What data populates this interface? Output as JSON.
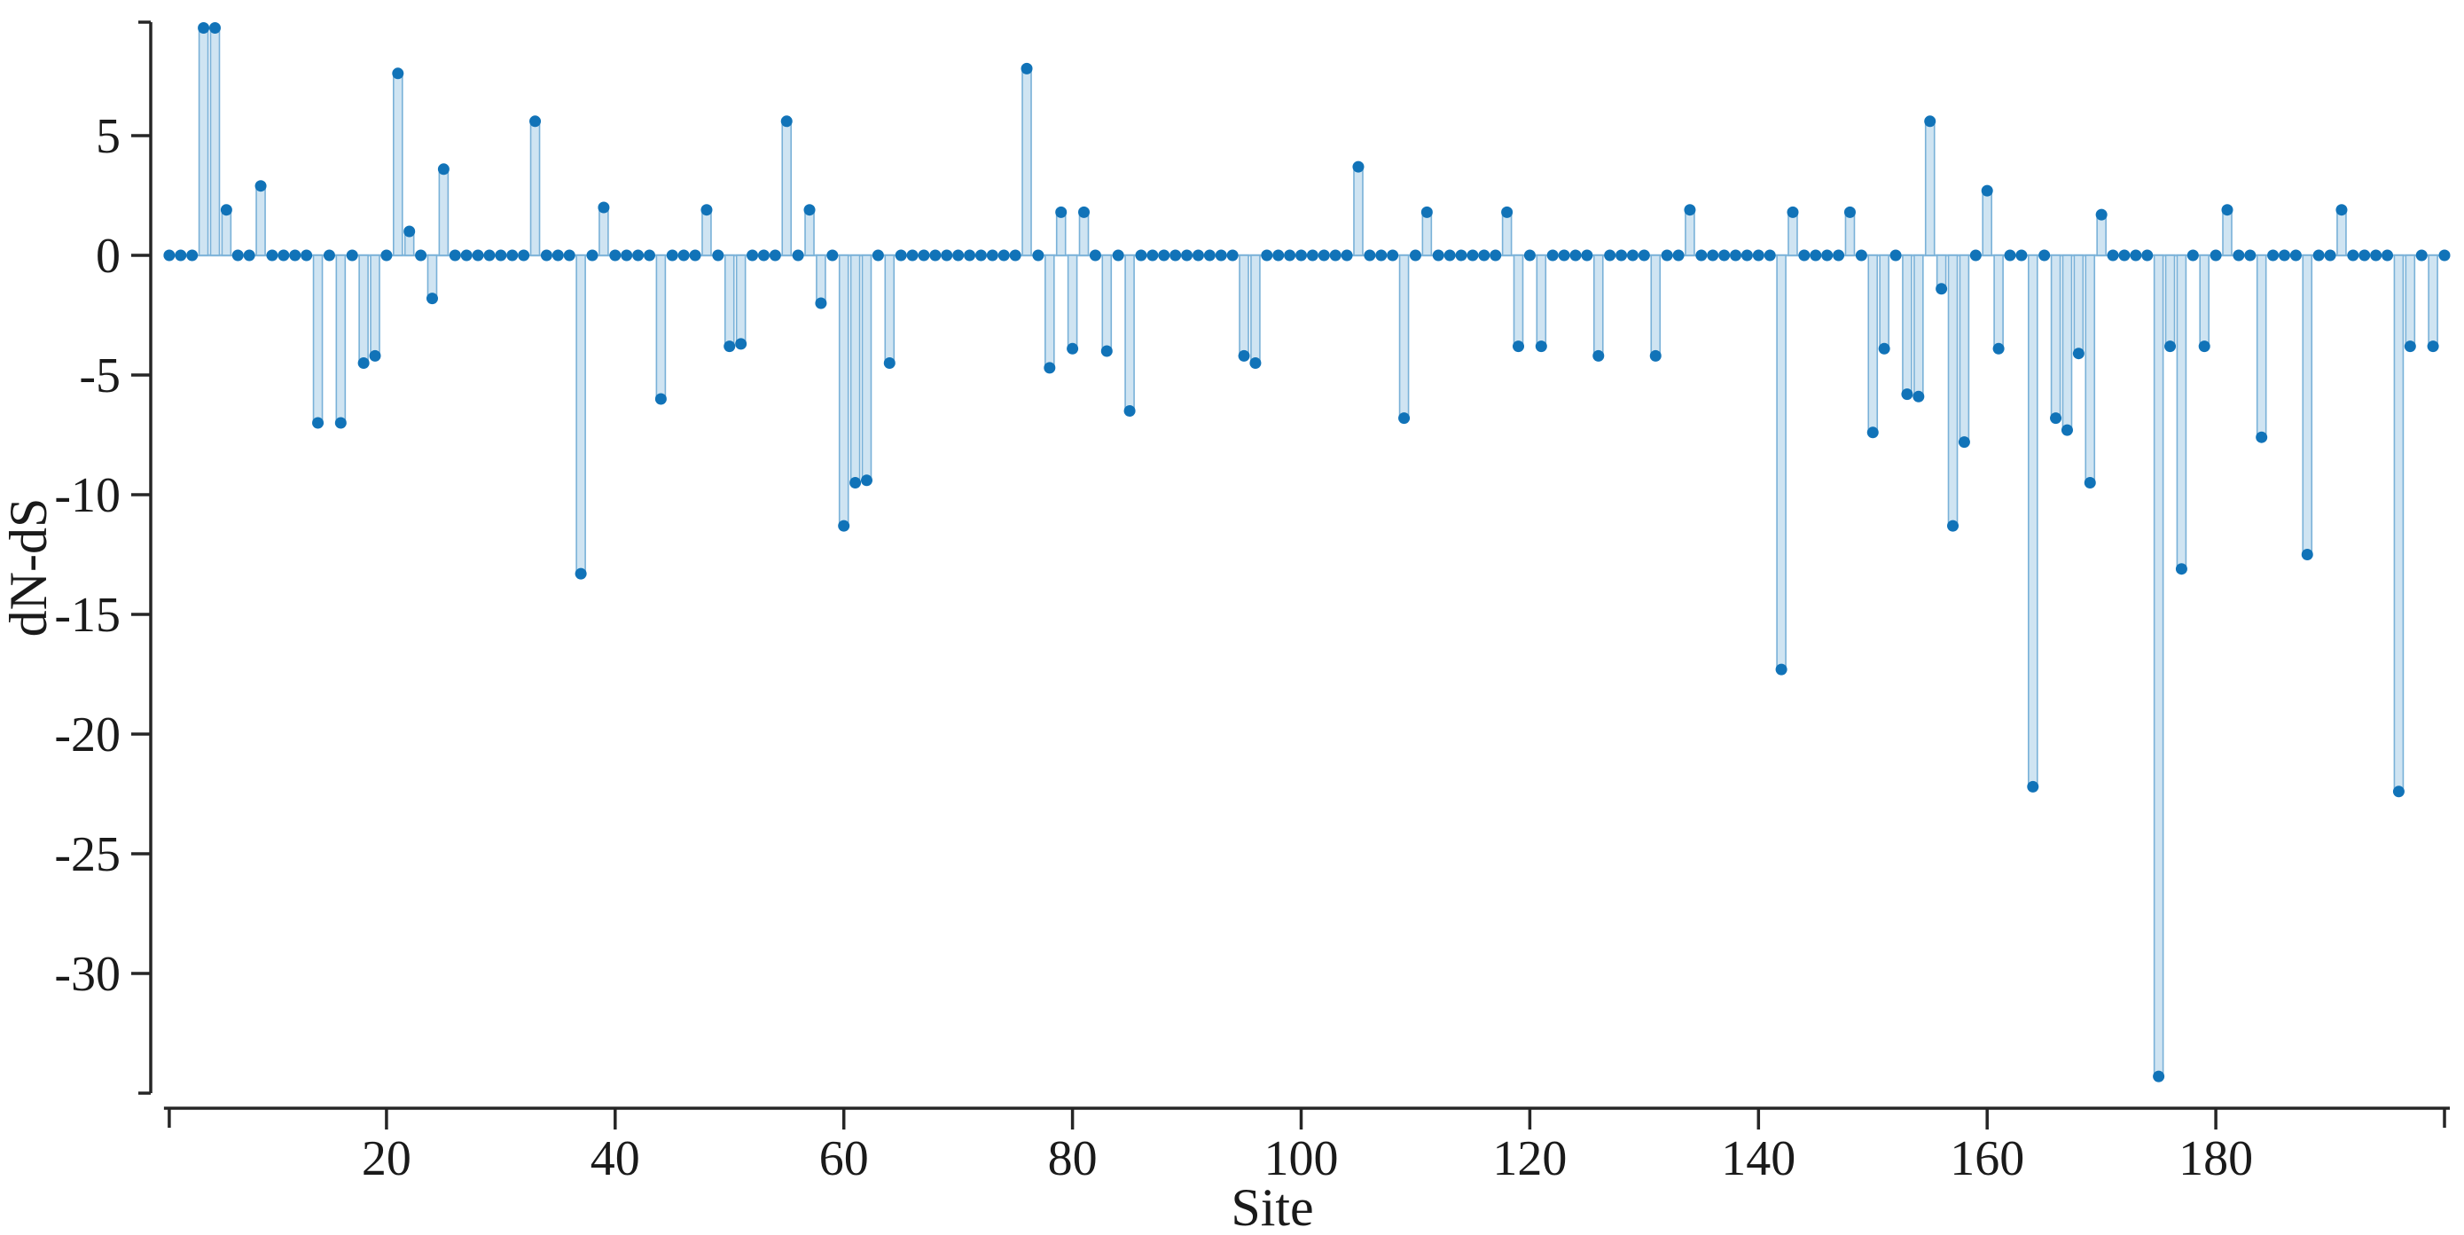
{
  "chart_data": {
    "type": "bar",
    "title": "",
    "xlabel": "Site",
    "ylabel": "dN-dS",
    "x": "sites 1..200 (implicit integer positions)",
    "x_ticks": [
      20,
      40,
      60,
      80,
      100,
      120,
      140,
      160,
      180
    ],
    "y_ticks": [
      5,
      0,
      -5,
      -10,
      -15,
      -20,
      -25,
      -30
    ],
    "xlim": [
      1,
      200
    ],
    "ylim": [
      -35.5,
      9.7
    ],
    "grid": false,
    "legend": "none",
    "marker": "filled circle at every site value (zeros sit on baseline)",
    "values": [
      0,
      0,
      0,
      9.5,
      9.5,
      1.9,
      0,
      0,
      2.9,
      0,
      0,
      0,
      0,
      -7.0,
      0,
      -7.0,
      0,
      -4.5,
      -4.2,
      0,
      7.6,
      1.0,
      0,
      -1.8,
      3.6,
      0,
      0,
      0,
      0,
      0,
      0,
      0,
      5.6,
      0,
      0,
      0,
      -13.3,
      0,
      2.0,
      0,
      0,
      0,
      0,
      -6.0,
      0,
      0,
      0,
      1.9,
      0,
      -3.8,
      -3.7,
      0,
      0,
      0,
      5.6,
      0,
      1.9,
      -2.0,
      0,
      -11.3,
      -9.5,
      -9.4,
      0,
      -4.5,
      0,
      0,
      0,
      0,
      0,
      0,
      0,
      0,
      0,
      0,
      0,
      7.8,
      0,
      -4.7,
      1.8,
      -3.9,
      1.8,
      0,
      -4.0,
      0,
      -6.5,
      0,
      0,
      0,
      0,
      0,
      0,
      0,
      0,
      0,
      -4.2,
      -4.5,
      0,
      0,
      0,
      0,
      0,
      0,
      0,
      0,
      3.7,
      0,
      0,
      0,
      -6.8,
      0,
      1.8,
      0,
      0,
      0,
      0,
      0,
      0,
      1.8,
      -3.8,
      0,
      -3.8,
      0,
      0,
      0,
      0,
      -4.2,
      0,
      0,
      0,
      0,
      -4.2,
      0,
      0,
      1.9,
      0,
      0,
      0,
      0,
      0,
      0,
      0,
      -17.3,
      1.8,
      0,
      0,
      0,
      0,
      1.8,
      0,
      -7.4,
      -3.9,
      0,
      -5.8,
      -5.9,
      5.6,
      -1.4,
      -11.3,
      -7.8,
      0,
      2.7,
      -3.9,
      0,
      0,
      -22.2,
      0,
      -6.8,
      -7.3,
      -4.1,
      -9.5,
      1.7,
      0,
      0,
      0,
      0,
      -34.3,
      -3.8,
      -13.1,
      0,
      -3.8,
      0,
      1.9,
      0,
      0,
      -7.6,
      0,
      0,
      0,
      -12.5,
      0,
      0,
      1.9,
      0,
      0,
      0,
      0,
      -22.4,
      -3.8,
      0,
      -3.8,
      0
    ],
    "colors": {
      "point": "#1173b8",
      "stem_fill": "#cfe4f2",
      "stem_stroke": "#79b1d8",
      "baseline": "#8bbcde",
      "axis": "#262626"
    }
  }
}
